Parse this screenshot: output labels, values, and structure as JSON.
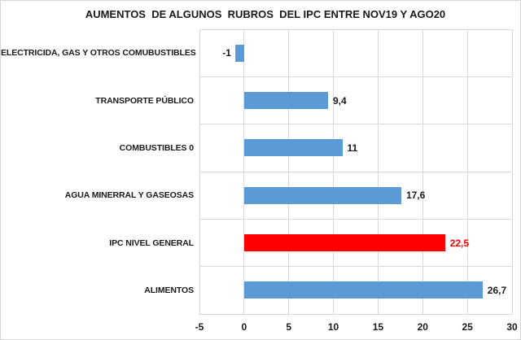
{
  "title": "AUMENTOS  DE ALGUNOS  RUBROS  DEL IPC ENTRE NOV19 Y AGO20",
  "colors": {
    "background": "#FFFFFF",
    "bar_default": "#5B9BD5",
    "bar_highlight": "#FF0000",
    "text": "#1A1A1A",
    "value_text": "#1A1A1A",
    "value_text_highlight": "#FF0000",
    "grid": "#D9D9D9"
  },
  "chart_data": {
    "type": "bar",
    "orientation": "horizontal",
    "title": "AUMENTOS  DE ALGUNOS  RUBROS  DEL IPC ENTRE NOV19 Y AGO20",
    "categories": [
      "ELECTRICIDA, GAS Y OTROS COMUBUSTIBLES",
      "TRANSPORTE PÚBLICO",
      "COMBUSTIBLES 0",
      "AGUA MINERRAL Y GASEOSAS",
      "IPC NIVEL GENERAL",
      "ALIMENTOS"
    ],
    "values": [
      -1,
      9.4,
      11,
      17.6,
      22.5,
      26.7
    ],
    "value_labels": [
      "-1",
      "9,4",
      "11",
      "17,6",
      "22,5",
      "26,7"
    ],
    "bar_colors": [
      "#5B9BD5",
      "#5B9BD5",
      "#5B9BD5",
      "#5B9BD5",
      "#FF0000",
      "#5B9BD5"
    ],
    "value_label_colors": [
      "#1A1A1A",
      "#1A1A1A",
      "#1A1A1A",
      "#1A1A1A",
      "#FF0000",
      "#1A1A1A"
    ],
    "xlabel": "",
    "ylabel": "",
    "xlim": [
      -5,
      30
    ],
    "xticks": [
      -5,
      0,
      5,
      10,
      15,
      20,
      25,
      30
    ],
    "xtick_labels": [
      "-5",
      "0",
      "5",
      "10",
      "15",
      "20",
      "25",
      "30"
    ],
    "grid": true,
    "legend": false
  }
}
